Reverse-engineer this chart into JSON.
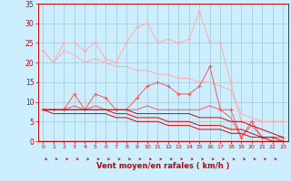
{
  "x": [
    0,
    1,
    2,
    3,
    4,
    5,
    6,
    7,
    8,
    9,
    10,
    11,
    12,
    13,
    14,
    15,
    16,
    17,
    18,
    19,
    20,
    21,
    22,
    23
  ],
  "series": [
    {
      "color": "#ffaaaa",
      "linewidth": 0.7,
      "marker": "+",
      "markersize": 3,
      "y": [
        23,
        20,
        25,
        25,
        23,
        25,
        21,
        20,
        25,
        29,
        30,
        25,
        26,
        25,
        26,
        33,
        25,
        25,
        15,
        5,
        5,
        5,
        5,
        5
      ]
    },
    {
      "color": "#ffaaaa",
      "linewidth": 0.7,
      "marker": null,
      "markersize": 0,
      "y": [
        23,
        20,
        23,
        22,
        20,
        21,
        20,
        19,
        19,
        18,
        18,
        17,
        17,
        16,
        16,
        15,
        15,
        14,
        13,
        7,
        6,
        5,
        5,
        5
      ]
    },
    {
      "color": "#ff5555",
      "linewidth": 0.7,
      "marker": "+",
      "markersize": 3,
      "y": [
        8,
        8,
        8,
        12,
        8,
        12,
        11,
        8,
        8,
        11,
        14,
        15,
        14,
        12,
        12,
        14,
        19,
        8,
        8,
        1,
        5,
        1,
        1,
        1
      ]
    },
    {
      "color": "#ff5555",
      "linewidth": 0.7,
      "marker": null,
      "markersize": 0,
      "y": [
        8,
        8,
        8,
        9,
        8,
        9,
        8,
        8,
        8,
        8,
        9,
        8,
        8,
        8,
        8,
        8,
        9,
        8,
        6,
        1,
        4,
        1,
        1,
        1
      ]
    },
    {
      "color": "#dd0000",
      "linewidth": 0.7,
      "marker": null,
      "markersize": 0,
      "y": [
        8,
        8,
        8,
        8,
        8,
        8,
        8,
        8,
        8,
        7,
        7,
        7,
        7,
        7,
        7,
        6,
        6,
        6,
        5,
        5,
        4,
        3,
        2,
        1
      ]
    },
    {
      "color": "#dd0000",
      "linewidth": 0.7,
      "marker": null,
      "markersize": 0,
      "y": [
        8,
        8,
        8,
        8,
        8,
        8,
        8,
        7,
        7,
        6,
        6,
        6,
        5,
        5,
        5,
        4,
        4,
        4,
        3,
        3,
        2,
        1,
        1,
        0
      ]
    },
    {
      "color": "#dd0000",
      "linewidth": 0.7,
      "marker": null,
      "markersize": 0,
      "y": [
        8,
        7,
        7,
        7,
        7,
        7,
        7,
        6,
        6,
        5,
        5,
        5,
        4,
        4,
        4,
        3,
        3,
        3,
        2,
        2,
        1,
        1,
        0,
        0
      ]
    }
  ],
  "xlim": [
    -0.5,
    23.5
  ],
  "ylim": [
    0,
    35
  ],
  "yticks": [
    0,
    5,
    10,
    15,
    20,
    25,
    30,
    35
  ],
  "xticks": [
    0,
    1,
    2,
    3,
    4,
    5,
    6,
    7,
    8,
    9,
    10,
    11,
    12,
    13,
    14,
    15,
    16,
    17,
    18,
    19,
    20,
    21,
    22,
    23
  ],
  "xlabel": "Vent moyen/en rafales ( km/h )",
  "bg_color": "#cceeff",
  "grid_color": "#99cccc",
  "tick_color": "#cc0000",
  "label_color": "#cc0000",
  "arrow_color": "#cc0000",
  "spine_color": "#cc0000"
}
